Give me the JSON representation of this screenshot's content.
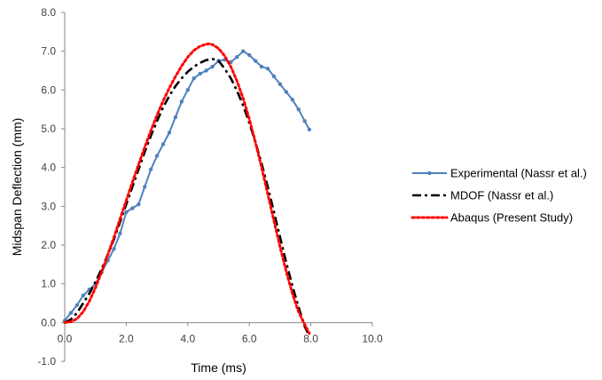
{
  "chart_data": {
    "type": "line",
    "title": "",
    "xlabel": "Time (ms)",
    "ylabel": "Midspan Deflection (mm)",
    "xlim": [
      0,
      10
    ],
    "ylim": [
      -1,
      8
    ],
    "x_ticks": [
      "0.0",
      "2.0",
      "4.0",
      "6.0",
      "8.0",
      "10.0"
    ],
    "y_ticks": [
      "-1.0",
      "0.0",
      "1.0",
      "2.0",
      "3.0",
      "4.0",
      "5.0",
      "6.0",
      "7.0",
      "8.0"
    ],
    "grid": false,
    "legend_position": "right",
    "series": [
      {
        "name": "Experimental (Nassr et al.)",
        "color": "#4f81bd",
        "style": "solid-with-markers",
        "x": [
          0.0,
          0.2,
          0.4,
          0.6,
          0.8,
          1.0,
          1.2,
          1.4,
          1.6,
          1.8,
          2.0,
          2.2,
          2.4,
          2.6,
          2.8,
          3.0,
          3.2,
          3.4,
          3.6,
          3.8,
          4.0,
          4.2,
          4.4,
          4.6,
          4.8,
          5.0,
          5.2,
          5.4,
          5.6,
          5.8,
          6.0,
          6.2,
          6.4,
          6.6,
          6.8,
          7.0,
          7.2,
          7.4,
          7.6,
          7.8,
          7.95
        ],
        "y": [
          0.05,
          0.25,
          0.45,
          0.7,
          0.85,
          1.0,
          1.3,
          1.6,
          1.9,
          2.3,
          2.85,
          2.95,
          3.05,
          3.5,
          3.95,
          4.3,
          4.6,
          4.9,
          5.3,
          5.7,
          6.0,
          6.3,
          6.42,
          6.5,
          6.6,
          6.75,
          6.78,
          6.72,
          6.85,
          7.0,
          6.9,
          6.75,
          6.6,
          6.55,
          6.35,
          6.15,
          5.95,
          5.75,
          5.5,
          5.2,
          4.98
        ]
      },
      {
        "name": "MDOF (Nassr et al.)",
        "color": "#000000",
        "style": "dash-dot",
        "x": [
          0.0,
          0.2,
          0.4,
          0.6,
          0.8,
          1.0,
          1.2,
          1.4,
          1.6,
          1.8,
          2.0,
          2.2,
          2.4,
          2.6,
          2.8,
          3.0,
          3.2,
          3.4,
          3.6,
          3.8,
          4.0,
          4.2,
          4.4,
          4.6,
          4.8,
          5.0,
          5.2,
          5.4,
          5.6,
          5.8,
          6.0,
          6.2,
          6.4,
          6.6,
          6.8,
          7.0,
          7.2,
          7.4,
          7.6,
          7.8,
          7.95
        ],
        "y": [
          0.0,
          0.08,
          0.25,
          0.5,
          0.75,
          1.05,
          1.38,
          1.75,
          2.15,
          2.6,
          3.05,
          3.5,
          3.95,
          4.4,
          4.82,
          5.2,
          5.55,
          5.85,
          6.1,
          6.3,
          6.47,
          6.6,
          6.7,
          6.77,
          6.8,
          6.75,
          6.55,
          6.3,
          5.98,
          5.6,
          5.15,
          4.65,
          4.1,
          3.5,
          2.85,
          2.2,
          1.55,
          0.95,
          0.4,
          -0.1,
          -0.35
        ]
      },
      {
        "name": "Abaqus (Present Study)",
        "color": "#ff0000",
        "style": "dotted",
        "x": [
          0.0,
          0.2,
          0.4,
          0.6,
          0.8,
          1.0,
          1.2,
          1.4,
          1.6,
          1.8,
          2.0,
          2.2,
          2.4,
          2.6,
          2.8,
          3.0,
          3.2,
          3.4,
          3.6,
          3.8,
          4.0,
          4.2,
          4.4,
          4.6,
          4.7,
          4.8,
          5.0,
          5.2,
          5.4,
          5.6,
          5.8,
          6.0,
          6.2,
          6.4,
          6.6,
          6.8,
          7.0,
          7.2,
          7.4,
          7.6,
          7.8,
          7.95
        ],
        "y": [
          0.0,
          0.02,
          0.1,
          0.28,
          0.55,
          0.9,
          1.3,
          1.75,
          2.2,
          2.68,
          3.15,
          3.62,
          4.08,
          4.52,
          4.95,
          5.35,
          5.72,
          6.05,
          6.35,
          6.62,
          6.85,
          7.02,
          7.13,
          7.18,
          7.19,
          7.17,
          7.07,
          6.88,
          6.6,
          6.23,
          5.78,
          5.25,
          4.65,
          4.0,
          3.32,
          2.62,
          1.95,
          1.32,
          0.75,
          0.28,
          -0.05,
          -0.28
        ]
      }
    ]
  }
}
